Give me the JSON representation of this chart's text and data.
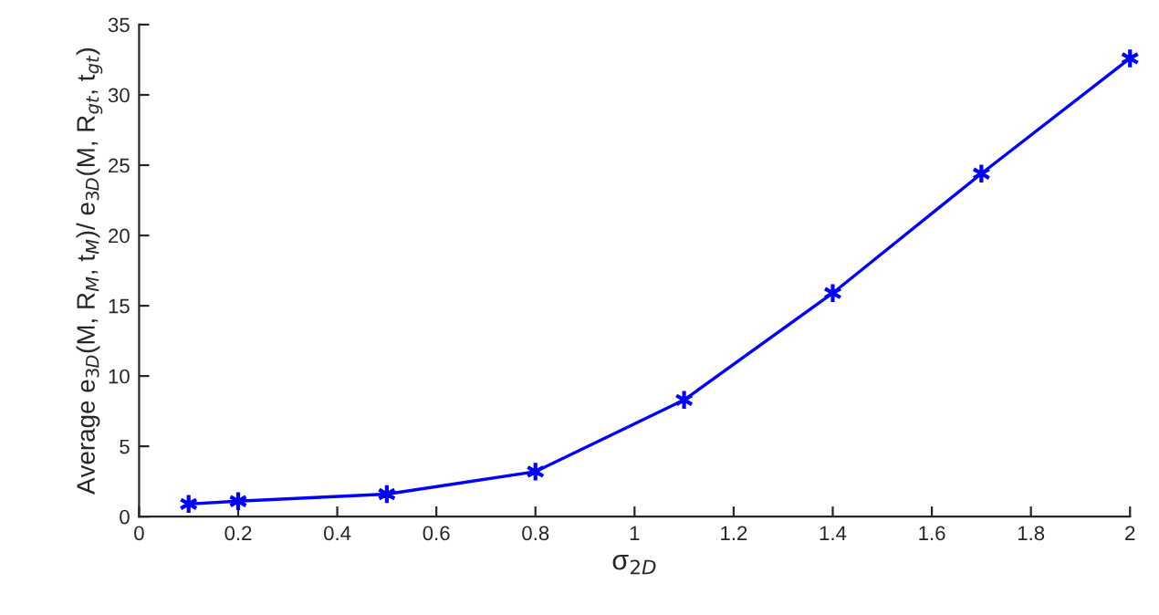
{
  "chart_data": {
    "type": "line",
    "xlabel": "σ$_{2D}$",
    "ylabel": "Average e$_{3D}$(M, R$_{M}$, t$_{M}$)/ e$_{3D}$(M, R$_{gt}$, t$_{gt}$)",
    "x": [
      0.1,
      0.2,
      0.5,
      0.8,
      1.1,
      1.4,
      1.7,
      2.0
    ],
    "series": [
      {
        "color": "#0000ff",
        "values": [
          0.9,
          1.1,
          1.6,
          3.2,
          8.3,
          15.9,
          24.4,
          32.6
        ]
      }
    ],
    "xlim": [
      0,
      2
    ],
    "xticks": [
      0,
      0.2,
      0.4,
      0.6,
      0.8,
      1,
      1.2,
      1.4,
      1.6,
      1.8,
      2
    ],
    "ylim": [
      0,
      35
    ],
    "yticks": [
      0,
      5,
      10,
      15,
      20,
      25,
      30,
      35
    ],
    "marker": "cross",
    "line_style": "solid",
    "grid": false,
    "legend": false
  }
}
